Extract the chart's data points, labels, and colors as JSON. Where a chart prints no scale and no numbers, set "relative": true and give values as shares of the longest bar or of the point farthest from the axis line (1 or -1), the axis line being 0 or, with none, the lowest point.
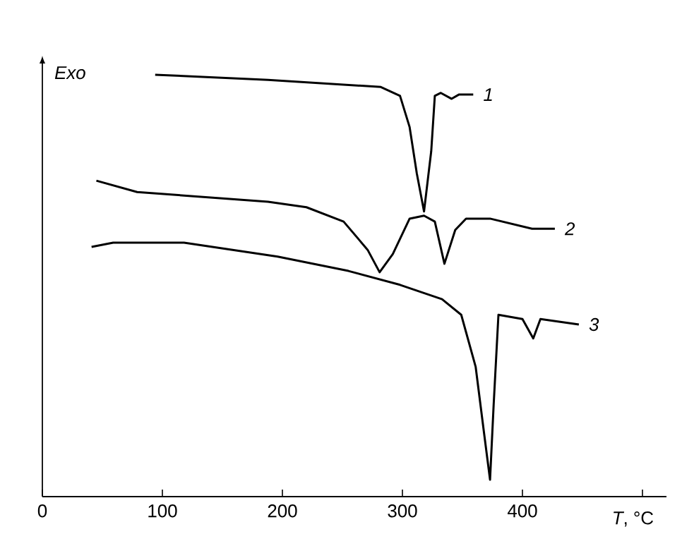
{
  "chart_data": {
    "type": "line",
    "relative": true,
    "xlabel": "*T*, °C",
    "ylabel": "Exo",
    "xlim": [
      0,
      520
    ],
    "xticks": [
      0,
      100,
      200,
      300,
      400,
      {
        "value": 500,
        "label": null
      }
    ],
    "line_style": "solid",
    "grid": false,
    "legend": false,
    "series": [
      {
        "name": "1",
        "color": "#000000",
        "x": [
          94,
          188,
          282,
          298,
          306,
          312,
          318,
          324,
          327,
          332,
          341,
          347,
          359
        ],
        "values": [
          1.0,
          0.988,
          0.971,
          0.95,
          0.876,
          0.766,
          0.676,
          0.819,
          0.95,
          0.957,
          0.943,
          0.953,
          0.953
        ]
      },
      {
        "name": "2",
        "color": "#000000",
        "x": [
          45,
          79,
          188,
          220,
          251,
          271,
          281,
          292,
          306,
          318,
          327,
          335,
          344,
          353,
          373,
          408,
          427
        ],
        "values": [
          0.749,
          0.722,
          0.699,
          0.686,
          0.652,
          0.585,
          0.532,
          0.575,
          0.659,
          0.666,
          0.652,
          0.552,
          0.632,
          0.659,
          0.659,
          0.635,
          0.635
        ]
      },
      {
        "name": "3",
        "color": "#000000",
        "x": [
          41,
          59,
          118,
          196,
          255,
          298,
          333,
          349,
          361,
          368,
          373,
          376,
          380,
          400,
          409,
          415,
          447
        ],
        "values": [
          0.592,
          0.602,
          0.602,
          0.569,
          0.535,
          0.502,
          0.468,
          0.431,
          0.308,
          0.151,
          0.04,
          0.217,
          0.431,
          0.421,
          0.375,
          0.421,
          0.408
        ]
      }
    ]
  }
}
